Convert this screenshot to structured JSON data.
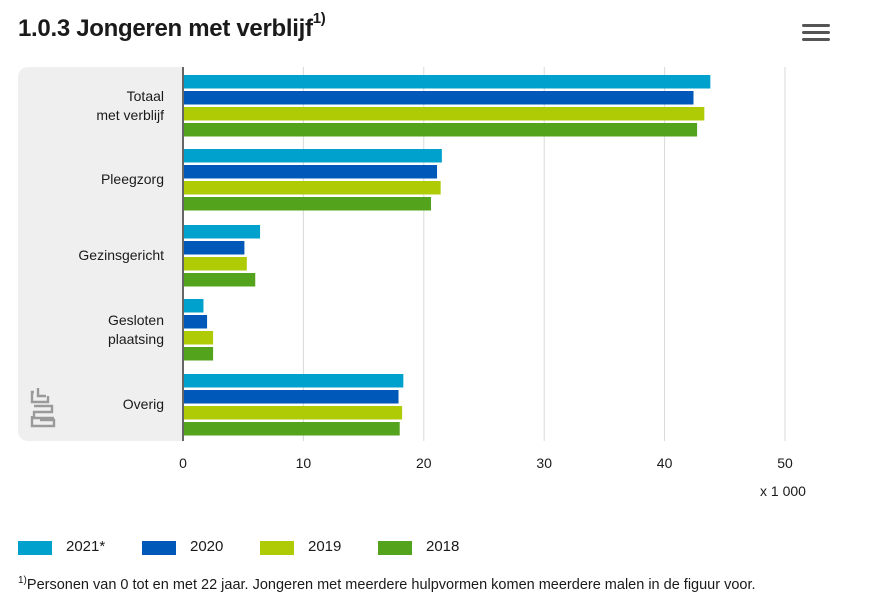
{
  "header": {
    "title": "1.0.3 Jongeren met verblijf",
    "title_sup": "1)",
    "menu_icon": "hamburger-menu-icon"
  },
  "colors": {
    "2021*": "#00a1cd",
    "2020": "#0058b8",
    "2019": "#afcb05",
    "2018": "#53a31d",
    "panel": "#efefef",
    "grid": "#d9d9d9",
    "axis": "#666666"
  },
  "chart_data": {
    "type": "bar",
    "orientation": "horizontal",
    "categories": [
      "Totaal\nmet verblijf",
      "Pleegzorg",
      "Gezinsgericht",
      "Gesloten\nplaatsing",
      "Overig"
    ],
    "series": [
      {
        "name": "2021*",
        "values": [
          43.8,
          21.5,
          6.4,
          1.7,
          18.3
        ]
      },
      {
        "name": "2020",
        "values": [
          42.4,
          21.1,
          5.1,
          2.0,
          17.9
        ]
      },
      {
        "name": "2019",
        "values": [
          43.3,
          21.4,
          5.3,
          2.5,
          18.2
        ]
      },
      {
        "name": "2018",
        "values": [
          42.7,
          20.6,
          6.0,
          2.5,
          18.0
        ]
      }
    ],
    "xlim": [
      0,
      50
    ],
    "xticks": [
      0,
      10,
      20,
      30,
      40,
      50
    ],
    "xunit": "x 1 000",
    "grid": true,
    "legend_position": "bottom"
  },
  "footnote": {
    "marker": "1)",
    "text": "Personen van 0 tot en met 22 jaar. Jongeren met meerdere hulpvormen komen meerdere malen in de figuur voor."
  },
  "logo_icon": "cbs-logo-icon"
}
